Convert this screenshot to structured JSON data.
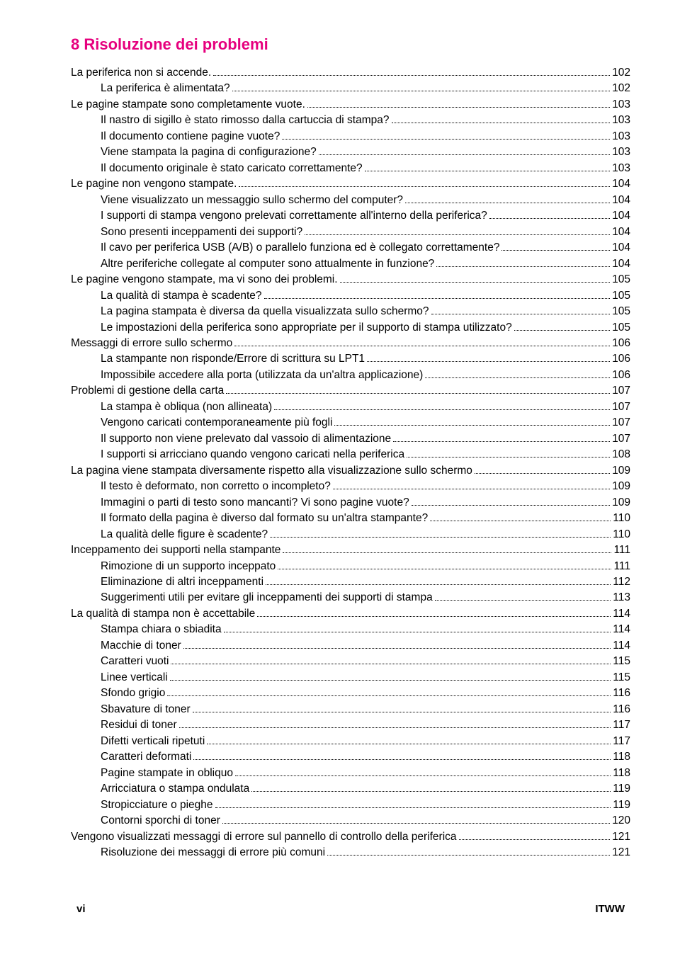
{
  "chapter_title": "8 Risoluzione dei problemi",
  "footer": {
    "left": "vi",
    "right": "ITWW"
  },
  "entries": [
    {
      "level": 0,
      "text": "La periferica non si accende.",
      "page": "102"
    },
    {
      "level": 1,
      "text": "La periferica è alimentata?",
      "page": "102"
    },
    {
      "level": 0,
      "text": "Le pagine stampate sono completamente vuote.",
      "page": "103"
    },
    {
      "level": 1,
      "text": "Il nastro di sigillo è stato rimosso dalla cartuccia di stampa?",
      "page": "103"
    },
    {
      "level": 1,
      "text": "Il documento contiene pagine vuote?",
      "page": "103"
    },
    {
      "level": 1,
      "text": "Viene stampata la pagina di configurazione?",
      "page": "103"
    },
    {
      "level": 1,
      "text": "Il documento originale è stato caricato correttamente?",
      "page": "103"
    },
    {
      "level": 0,
      "text": "Le pagine non vengono stampate.",
      "page": "104"
    },
    {
      "level": 1,
      "text": "Viene visualizzato un messaggio sullo schermo del computer?",
      "page": "104"
    },
    {
      "level": 1,
      "text": "I supporti di stampa vengono prelevati correttamente all'interno della periferica?",
      "page": "104"
    },
    {
      "level": 1,
      "text": "Sono presenti inceppamenti dei supporti?",
      "page": "104"
    },
    {
      "level": 1,
      "text": "Il cavo per periferica USB (A/B) o parallelo funziona ed è collegato correttamente?",
      "page": "104"
    },
    {
      "level": 1,
      "text": "Altre periferiche collegate al computer sono attualmente in funzione?",
      "page": "104"
    },
    {
      "level": 0,
      "text": "Le pagine vengono stampate, ma vi sono dei problemi.",
      "page": "105"
    },
    {
      "level": 1,
      "text": "La qualità di stampa è scadente?",
      "page": "105"
    },
    {
      "level": 1,
      "text": "La pagina stampata è diversa da quella visualizzata sullo schermo?",
      "page": "105"
    },
    {
      "level": 1,
      "text": "Le impostazioni della periferica sono appropriate per il supporto di stampa utilizzato?",
      "page": "105"
    },
    {
      "level": 0,
      "text": "Messaggi di errore sullo schermo",
      "page": "106"
    },
    {
      "level": 1,
      "text": "La stampante non risponde/Errore di scrittura su LPT1",
      "page": "106"
    },
    {
      "level": 1,
      "text": "Impossibile accedere alla porta (utilizzata da un'altra applicazione)",
      "page": "106"
    },
    {
      "level": 0,
      "text": "Problemi di gestione della carta",
      "page": "107"
    },
    {
      "level": 1,
      "text": "La stampa è obliqua (non allineata)",
      "page": "107"
    },
    {
      "level": 1,
      "text": "Vengono caricati contemporaneamente più fogli",
      "page": "107"
    },
    {
      "level": 1,
      "text": "Il supporto non viene prelevato dal vassoio di alimentazione",
      "page": "107"
    },
    {
      "level": 1,
      "text": "I supporti si arricciano quando vengono caricati nella periferica",
      "page": "108"
    },
    {
      "level": 0,
      "text": "La pagina viene stampata diversamente rispetto alla visualizzazione sullo schermo",
      "page": "109"
    },
    {
      "level": 1,
      "text": "Il testo è deformato, non corretto o incompleto?",
      "page": "109"
    },
    {
      "level": 1,
      "text": "Immagini o parti di testo sono mancanti? Vi sono pagine vuote?",
      "page": "109"
    },
    {
      "level": 1,
      "text": "Il formato della pagina è diverso dal formato su un'altra stampante?",
      "page": "110"
    },
    {
      "level": 1,
      "text": "La qualità delle figure è scadente?",
      "page": "110"
    },
    {
      "level": 0,
      "text": "Inceppamento dei supporti nella stampante",
      "page": "111"
    },
    {
      "level": 1,
      "text": "Rimozione di un supporto inceppato",
      "page": "111"
    },
    {
      "level": 1,
      "text": "Eliminazione di altri inceppamenti",
      "page": "112"
    },
    {
      "level": 1,
      "text": "Suggerimenti utili per evitare gli inceppamenti dei supporti di stampa",
      "page": "113"
    },
    {
      "level": 0,
      "text": "La qualità di stampa non è accettabile",
      "page": "114"
    },
    {
      "level": 1,
      "text": "Stampa chiara o sbiadita",
      "page": "114"
    },
    {
      "level": 1,
      "text": "Macchie di toner",
      "page": "114"
    },
    {
      "level": 1,
      "text": "Caratteri vuoti",
      "page": "115"
    },
    {
      "level": 1,
      "text": "Linee verticali",
      "page": "115"
    },
    {
      "level": 1,
      "text": "Sfondo grigio",
      "page": "116"
    },
    {
      "level": 1,
      "text": "Sbavature di toner",
      "page": "116"
    },
    {
      "level": 1,
      "text": "Residui di toner",
      "page": "117"
    },
    {
      "level": 1,
      "text": "Difetti verticali ripetuti",
      "page": "117"
    },
    {
      "level": 1,
      "text": "Caratteri deformati",
      "page": "118"
    },
    {
      "level": 1,
      "text": "Pagine stampate in obliquo",
      "page": "118"
    },
    {
      "level": 1,
      "text": "Arricciatura o stampa ondulata",
      "page": "119"
    },
    {
      "level": 1,
      "text": "Stropicciature o pieghe",
      "page": "119"
    },
    {
      "level": 1,
      "text": "Contorni sporchi di toner",
      "page": "120"
    },
    {
      "level": 0,
      "text": "Vengono visualizzati messaggi di errore sul pannello di controllo della periferica",
      "page": "121"
    },
    {
      "level": 1,
      "text": "Risoluzione dei messaggi di errore più comuni",
      "page": "121"
    }
  ]
}
